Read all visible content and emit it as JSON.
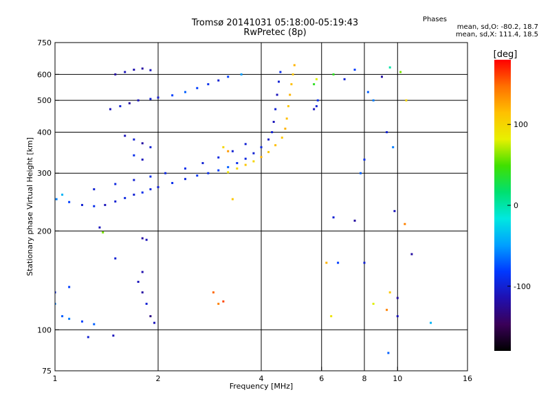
{
  "figure": {
    "title": "Tromsø 20141031 05:18:00-05:19:43",
    "subtitle": "RwPretec (8p)",
    "stats": {
      "heading": "Phases",
      "line_o": "mean, sd,O: -80.2, 18.7",
      "line_x": "mean, sd,X: 111.4, 18.5"
    }
  },
  "chart_data": {
    "type": "scatter",
    "title": "Tromsø 20141031 05:18:00-05:19:43",
    "subtitle": "RwPretec (8p)",
    "xlabel": "Frequency [MHz]",
    "ylabel": "Stationary phase Virtual Height [km]",
    "x_scale": "log",
    "y_scale": "log",
    "xlim": [
      1,
      16
    ],
    "ylim": [
      75,
      750
    ],
    "x_ticks": [
      1,
      2,
      4,
      6,
      8,
      10,
      16
    ],
    "x_tick_labels": [
      "1",
      "2",
      "4",
      "6",
      "8",
      "10",
      "16"
    ],
    "y_ticks": [
      75,
      100,
      200,
      300,
      400,
      500,
      600,
      750
    ],
    "y_tick_labels": [
      "75",
      "100",
      "200",
      "300",
      "400",
      "500",
      "600",
      "750"
    ],
    "x_grid": [
      2,
      4,
      6,
      8,
      10
    ],
    "y_grid": [
      100,
      200,
      300,
      400,
      500,
      600
    ],
    "colorbar": {
      "label": "[deg]",
      "range": [
        -180,
        180
      ],
      "ticks": [
        100,
        0,
        -100
      ],
      "tick_labels": [
        "100",
        "0",
        "-100"
      ],
      "colors": [
        "#000000",
        "#3a0058",
        "#2010b0",
        "#0038ff",
        "#00a0ff",
        "#00e8e0",
        "#00e070",
        "#40e000",
        "#e8f000",
        "#ffc000",
        "#ff7000",
        "#ff0000"
      ]
    },
    "series": [
      {
        "points": [
          [
            1.01,
            250,
            -60
          ],
          [
            1.05,
            258,
            -40
          ],
          [
            1.1,
            245,
            -80
          ],
          [
            1.2,
            240,
            -100
          ],
          [
            1.3,
            238,
            -90
          ],
          [
            1.4,
            240,
            -110
          ],
          [
            1.5,
            246,
            -100
          ],
          [
            1.6,
            252,
            -95
          ],
          [
            1.7,
            258,
            -100
          ],
          [
            1.8,
            262,
            -90
          ],
          [
            1.9,
            268,
            -95
          ],
          [
            2.0,
            272,
            -100
          ],
          [
            2.2,
            280,
            -90
          ],
          [
            2.4,
            288,
            -95
          ],
          [
            2.6,
            295,
            -85
          ],
          [
            2.8,
            300,
            -90
          ],
          [
            3.0,
            306,
            -80
          ],
          [
            3.2,
            313,
            -70
          ],
          [
            3.4,
            322,
            -90
          ],
          [
            3.6,
            332,
            -95
          ],
          [
            3.8,
            345,
            -100
          ],
          [
            4.0,
            360,
            -95
          ],
          [
            4.2,
            380,
            -105
          ],
          [
            4.3,
            400,
            -100
          ],
          [
            4.35,
            430,
            -110
          ],
          [
            4.4,
            470,
            -100
          ],
          [
            4.45,
            520,
            -110
          ],
          [
            4.5,
            570,
            -100
          ],
          [
            4.55,
            610,
            -90
          ]
        ]
      },
      {
        "points": [
          [
            1.3,
            268,
            -100
          ],
          [
            1.5,
            278,
            -95
          ],
          [
            1.7,
            286,
            -100
          ],
          [
            1.9,
            293,
            -90
          ],
          [
            2.1,
            300,
            -95
          ],
          [
            2.4,
            310,
            -90
          ],
          [
            2.7,
            322,
            -100
          ],
          [
            3.0,
            335,
            -95
          ],
          [
            3.3,
            350,
            -100
          ],
          [
            3.6,
            368,
            -100
          ]
        ]
      },
      {
        "points": [
          [
            3.2,
            302,
            90
          ],
          [
            3.4,
            310,
            100
          ],
          [
            3.6,
            318,
            110
          ],
          [
            3.8,
            326,
            100
          ],
          [
            4.0,
            336,
            120
          ],
          [
            4.2,
            348,
            110
          ],
          [
            4.4,
            365,
            115
          ],
          [
            4.6,
            385,
            110
          ],
          [
            4.7,
            410,
            120
          ],
          [
            4.75,
            440,
            115
          ],
          [
            4.8,
            480,
            110
          ],
          [
            4.85,
            520,
            120
          ],
          [
            4.9,
            560,
            115
          ],
          [
            4.95,
            600,
            110
          ],
          [
            5.0,
            640,
            120
          ]
        ]
      },
      {
        "points": [
          [
            1.45,
            470,
            -110
          ],
          [
            1.55,
            480,
            -100
          ],
          [
            1.65,
            490,
            -120
          ],
          [
            1.75,
            500,
            -110
          ],
          [
            1.9,
            505,
            -100
          ],
          [
            2.0,
            510,
            -105
          ],
          [
            2.2,
            518,
            -80
          ],
          [
            2.4,
            530,
            -70
          ],
          [
            2.6,
            545,
            -80
          ],
          [
            2.8,
            560,
            -90
          ],
          [
            3.0,
            575,
            -100
          ],
          [
            3.2,
            590,
            -80
          ],
          [
            3.5,
            600,
            -50
          ]
        ]
      },
      {
        "points": [
          [
            1.5,
            600,
            -120
          ],
          [
            1.6,
            610,
            -110
          ],
          [
            1.7,
            620,
            -115
          ],
          [
            1.8,
            625,
            -120
          ],
          [
            1.9,
            618,
            -110
          ]
        ]
      },
      {
        "points": [
          [
            1.6,
            390,
            -110
          ],
          [
            1.7,
            380,
            -100
          ],
          [
            1.8,
            370,
            -120
          ],
          [
            1.9,
            360,
            -100
          ],
          [
            1.7,
            340,
            -90
          ],
          [
            1.8,
            330,
            -110
          ]
        ]
      },
      {
        "points": [
          [
            1.0,
            120,
            -60
          ],
          [
            1.05,
            110,
            -70
          ],
          [
            1.1,
            108,
            -60
          ],
          [
            1.2,
            106,
            -80
          ],
          [
            1.3,
            104,
            -70
          ],
          [
            1.0,
            130,
            -90
          ],
          [
            1.1,
            135,
            -80
          ]
        ]
      },
      {
        "points": [
          [
            1.75,
            140,
            -110
          ],
          [
            1.8,
            130,
            -120
          ],
          [
            1.85,
            120,
            -100
          ],
          [
            1.9,
            110,
            -130
          ],
          [
            1.95,
            105,
            -110
          ],
          [
            1.8,
            150,
            -115
          ]
        ]
      },
      {
        "points": [
          [
            5.7,
            470,
            -110
          ],
          [
            5.8,
            480,
            -100
          ],
          [
            5.85,
            500,
            -90
          ],
          [
            5.7,
            560,
            40
          ],
          [
            5.8,
            580,
            80
          ],
          [
            6.5,
            600,
            40
          ],
          [
            7.0,
            580,
            -100
          ],
          [
            7.5,
            620,
            -80
          ],
          [
            8.2,
            530,
            -70
          ],
          [
            8.5,
            500,
            -60
          ],
          [
            9.0,
            590,
            -120
          ],
          [
            9.5,
            630,
            0
          ],
          [
            10.2,
            610,
            60
          ],
          [
            10.6,
            500,
            100
          ]
        ]
      },
      {
        "points": [
          [
            7.8,
            300,
            -70
          ],
          [
            8.0,
            330,
            -90
          ],
          [
            9.3,
            400,
            -100
          ],
          [
            9.7,
            360,
            -60
          ],
          [
            9.8,
            230,
            -110
          ],
          [
            6.5,
            220,
            -100
          ],
          [
            7.5,
            215,
            -120
          ],
          [
            10.5,
            210,
            140
          ],
          [
            11.0,
            170,
            -120
          ],
          [
            6.2,
            160,
            120
          ],
          [
            6.7,
            160,
            -80
          ],
          [
            8.0,
            160,
            -100
          ],
          [
            9.5,
            130,
            110
          ],
          [
            10.0,
            125,
            -120
          ],
          [
            9.3,
            115,
            140
          ],
          [
            10.0,
            110,
            -110
          ],
          [
            12.5,
            105,
            -40
          ],
          [
            8.5,
            120,
            80
          ],
          [
            9.4,
            85,
            -70
          ],
          [
            6.4,
            110,
            90
          ]
        ]
      },
      {
        "points": [
          [
            1.35,
            205,
            -110
          ],
          [
            1.38,
            198,
            60
          ],
          [
            1.8,
            190,
            -120
          ],
          [
            1.85,
            188,
            -110
          ],
          [
            1.5,
            165,
            -100
          ],
          [
            2.9,
            130,
            150
          ],
          [
            3.0,
            120,
            140
          ],
          [
            3.1,
            122,
            160
          ],
          [
            1.48,
            96,
            -110
          ],
          [
            1.25,
            95,
            -100
          ],
          [
            3.3,
            250,
            110
          ],
          [
            3.1,
            360,
            100
          ],
          [
            3.2,
            350,
            130
          ]
        ]
      }
    ]
  }
}
